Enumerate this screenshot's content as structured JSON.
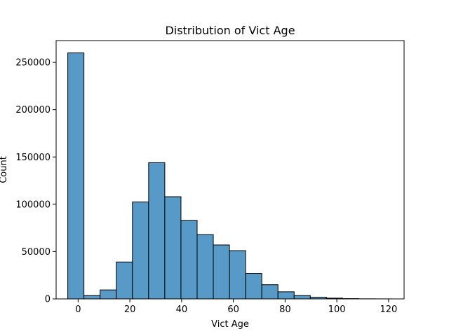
{
  "chart_data": {
    "type": "bar",
    "title": "Distribution of Vict Age",
    "xlabel": "Vict Age",
    "ylabel": "Count",
    "bar_color": "#5799c7",
    "edge_color": "#000000",
    "xlim": [
      -8.5,
      126
    ],
    "ylim": [
      0,
      273000
    ],
    "xticks": [
      0,
      20,
      40,
      60,
      80,
      100,
      120
    ],
    "yticks": [
      0,
      50000,
      100000,
      150000,
      200000,
      250000
    ],
    "xtick_labels": [
      "0",
      "20",
      "40",
      "60",
      "80",
      "100",
      "120"
    ],
    "ytick_labels": [
      "0",
      "50000",
      "100000",
      "150000",
      "200000",
      "250000"
    ],
    "bin_edges": [
      -4,
      2.25,
      8.5,
      14.75,
      21,
      27.25,
      33.5,
      39.75,
      46,
      52.25,
      58.5,
      64.75,
      71,
      77.25,
      83.5,
      89.75,
      96,
      102.25,
      108.5,
      114.75,
      121
    ],
    "values": [
      260000,
      3500,
      9500,
      39000,
      102500,
      144000,
      108000,
      83000,
      68000,
      57000,
      51000,
      27000,
      15000,
      7500,
      3500,
      1800,
      800,
      300,
      100,
      50
    ],
    "grid": false
  }
}
